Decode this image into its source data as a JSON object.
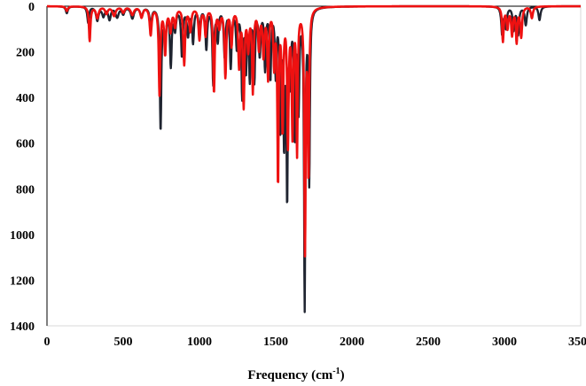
{
  "chart_data": {
    "type": "line",
    "title": "",
    "xlabel": "Frequency (cm",
    "xlabel_sup": "-1",
    "xlabel_end": ")",
    "ylabel": "",
    "xlim": [
      0,
      3500
    ],
    "ylim": [
      0,
      1400
    ],
    "y_inverted": true,
    "grid": false,
    "legend": "none",
    "x_ticks": [
      0,
      500,
      1000,
      1500,
      2000,
      2500,
      3000,
      3500
    ],
    "y_ticks": [
      0,
      200,
      400,
      600,
      800,
      1000,
      1200,
      1400
    ],
    "series": [
      {
        "color": "#1f2430",
        "peaks": [
          [
            130,
            30,
            8
          ],
          [
            270,
            70,
            7
          ],
          [
            330,
            60,
            10
          ],
          [
            370,
            40,
            10
          ],
          [
            410,
            55,
            10
          ],
          [
            460,
            45,
            12
          ],
          [
            500,
            30,
            10
          ],
          [
            560,
            50,
            12
          ],
          [
            620,
            40,
            10
          ],
          [
            680,
            80,
            8
          ],
          [
            745,
            535,
            6
          ],
          [
            775,
            130,
            8
          ],
          [
            812,
            250,
            7
          ],
          [
            840,
            90,
            8
          ],
          [
            885,
            210,
            7
          ],
          [
            925,
            120,
            8
          ],
          [
            958,
            150,
            7
          ],
          [
            1000,
            90,
            8
          ],
          [
            1045,
            180,
            7
          ],
          [
            1090,
            330,
            6
          ],
          [
            1120,
            140,
            7
          ],
          [
            1165,
            210,
            7
          ],
          [
            1205,
            260,
            7
          ],
          [
            1245,
            170,
            7
          ],
          [
            1280,
            380,
            6
          ],
          [
            1305,
            260,
            6
          ],
          [
            1330,
            300,
            6
          ],
          [
            1360,
            310,
            6
          ],
          [
            1395,
            200,
            7
          ],
          [
            1430,
            260,
            6
          ],
          [
            1465,
            300,
            6
          ],
          [
            1500,
            280,
            6
          ],
          [
            1530,
            500,
            6
          ],
          [
            1555,
            560,
            6
          ],
          [
            1575,
            790,
            5
          ],
          [
            1595,
            280,
            6
          ],
          [
            1625,
            550,
            6
          ],
          [
            1650,
            420,
            6
          ],
          [
            1690,
            1300,
            5
          ],
          [
            1720,
            750,
            5
          ],
          [
            2985,
            120,
            7
          ],
          [
            3010,
            90,
            7
          ],
          [
            3060,
            100,
            7
          ],
          [
            3090,
            120,
            7
          ],
          [
            3140,
            80,
            8
          ],
          [
            3230,
            60,
            8
          ]
        ]
      },
      {
        "color": "#ee1111",
        "peaks": [
          [
            130,
            20,
            8
          ],
          [
            280,
            150,
            6
          ],
          [
            330,
            50,
            10
          ],
          [
            390,
            30,
            10
          ],
          [
            440,
            40,
            12
          ],
          [
            500,
            25,
            10
          ],
          [
            560,
            35,
            12
          ],
          [
            620,
            45,
            10
          ],
          [
            680,
            120,
            8
          ],
          [
            738,
            380,
            6
          ],
          [
            775,
            200,
            7
          ],
          [
            810,
            100,
            8
          ],
          [
            840,
            80,
            8
          ],
          [
            900,
            250,
            7
          ],
          [
            940,
            100,
            8
          ],
          [
            1000,
            140,
            8
          ],
          [
            1040,
            120,
            7
          ],
          [
            1095,
            370,
            6
          ],
          [
            1130,
            80,
            8
          ],
          [
            1170,
            300,
            7
          ],
          [
            1210,
            160,
            7
          ],
          [
            1260,
            250,
            7
          ],
          [
            1290,
            420,
            6
          ],
          [
            1320,
            170,
            7
          ],
          [
            1350,
            360,
            6
          ],
          [
            1390,
            170,
            7
          ],
          [
            1420,
            200,
            7
          ],
          [
            1450,
            300,
            6
          ],
          [
            1490,
            240,
            6
          ],
          [
            1515,
            750,
            5
          ],
          [
            1545,
            520,
            6
          ],
          [
            1580,
            580,
            6
          ],
          [
            1610,
            540,
            6
          ],
          [
            1640,
            620,
            5
          ],
          [
            1692,
            1050,
            5
          ],
          [
            1715,
            720,
            5
          ],
          [
            2990,
            150,
            6
          ],
          [
            3020,
            90,
            7
          ],
          [
            3050,
            120,
            7
          ],
          [
            3080,
            150,
            6
          ],
          [
            3110,
            130,
            7
          ],
          [
            3180,
            50,
            8
          ]
        ]
      }
    ]
  }
}
